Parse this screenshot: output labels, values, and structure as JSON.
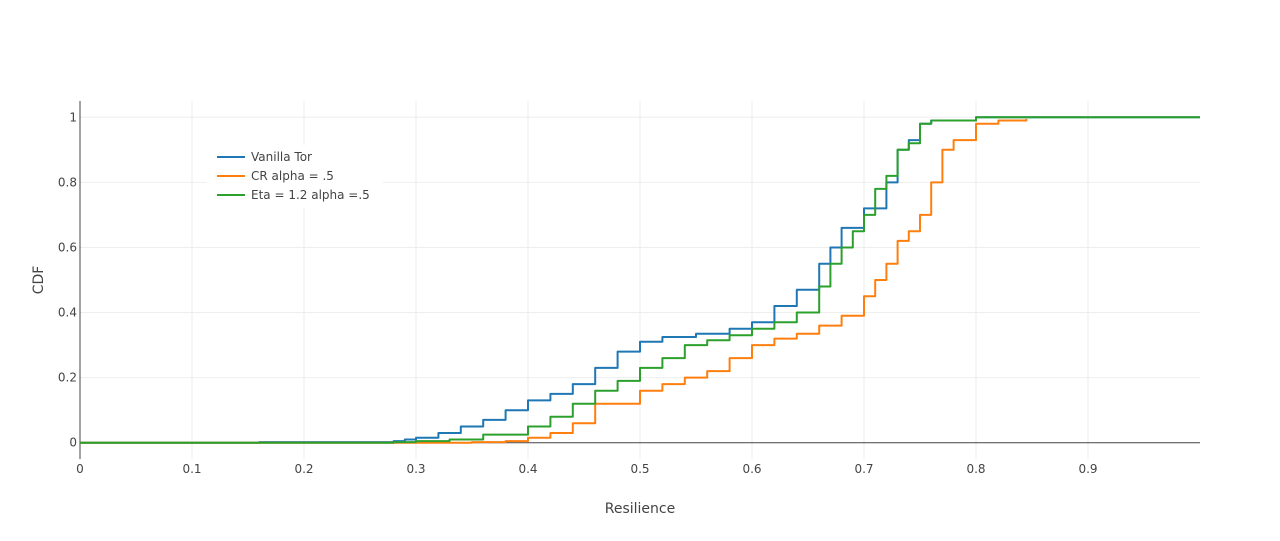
{
  "chart_data": {
    "type": "line",
    "xlabel": "Resilience",
    "ylabel": "CDF",
    "xlim": [
      0,
      1
    ],
    "ylim": [
      -0.05,
      1.05
    ],
    "xticks": [
      "0",
      "0.1",
      "0.2",
      "0.3",
      "0.4",
      "0.5",
      "0.6",
      "0.7",
      "0.8",
      "0.9"
    ],
    "yticks": [
      "0",
      "0.2",
      "0.4",
      "0.6",
      "0.8",
      "1"
    ],
    "grid": true,
    "legend_position": "top-left",
    "series": [
      {
        "name": "Vanilla Tor",
        "color": "#1f77b4",
        "x": [
          0,
          0.16,
          0.28,
          0.29,
          0.3,
          0.32,
          0.34,
          0.36,
          0.38,
          0.4,
          0.42,
          0.44,
          0.46,
          0.48,
          0.5,
          0.52,
          0.55,
          0.58,
          0.6,
          0.62,
          0.64,
          0.65,
          0.66,
          0.67,
          0.68,
          0.7,
          0.72,
          0.73,
          0.74,
          0.75,
          0.76,
          0.8,
          1.0
        ],
        "y": [
          0,
          0.002,
          0.005,
          0.01,
          0.015,
          0.03,
          0.05,
          0.07,
          0.1,
          0.13,
          0.15,
          0.18,
          0.23,
          0.28,
          0.31,
          0.325,
          0.335,
          0.35,
          0.37,
          0.42,
          0.47,
          0.47,
          0.55,
          0.6,
          0.66,
          0.72,
          0.8,
          0.9,
          0.93,
          0.98,
          0.99,
          1.0,
          1.0
        ]
      },
      {
        "name": "CR alpha = .5",
        "color": "#ff7f0e",
        "x": [
          0,
          0.3,
          0.35,
          0.38,
          0.4,
          0.42,
          0.44,
          0.46,
          0.5,
          0.52,
          0.54,
          0.56,
          0.58,
          0.6,
          0.62,
          0.64,
          0.66,
          0.68,
          0.7,
          0.71,
          0.72,
          0.73,
          0.74,
          0.75,
          0.76,
          0.77,
          0.78,
          0.8,
          0.82,
          0.845
        ],
        "y": [
          0,
          0,
          0.002,
          0.005,
          0.015,
          0.03,
          0.06,
          0.12,
          0.16,
          0.18,
          0.2,
          0.22,
          0.26,
          0.3,
          0.32,
          0.335,
          0.36,
          0.39,
          0.45,
          0.5,
          0.55,
          0.62,
          0.65,
          0.7,
          0.8,
          0.9,
          0.93,
          0.98,
          0.99,
          0.995
        ]
      },
      {
        "name": "Eta = 1.2 alpha =.5",
        "color": "#2ca02c",
        "x": [
          0,
          0.28,
          0.3,
          0.33,
          0.36,
          0.4,
          0.42,
          0.44,
          0.46,
          0.48,
          0.5,
          0.52,
          0.54,
          0.56,
          0.58,
          0.6,
          0.62,
          0.64,
          0.66,
          0.67,
          0.68,
          0.69,
          0.7,
          0.71,
          0.72,
          0.73,
          0.74,
          0.75,
          0.76,
          0.8,
          1.0
        ],
        "y": [
          0,
          0.002,
          0.005,
          0.01,
          0.025,
          0.05,
          0.08,
          0.12,
          0.16,
          0.19,
          0.23,
          0.26,
          0.3,
          0.315,
          0.33,
          0.35,
          0.37,
          0.4,
          0.48,
          0.55,
          0.6,
          0.65,
          0.7,
          0.78,
          0.82,
          0.9,
          0.92,
          0.98,
          0.99,
          1.0,
          1.0
        ]
      }
    ]
  }
}
